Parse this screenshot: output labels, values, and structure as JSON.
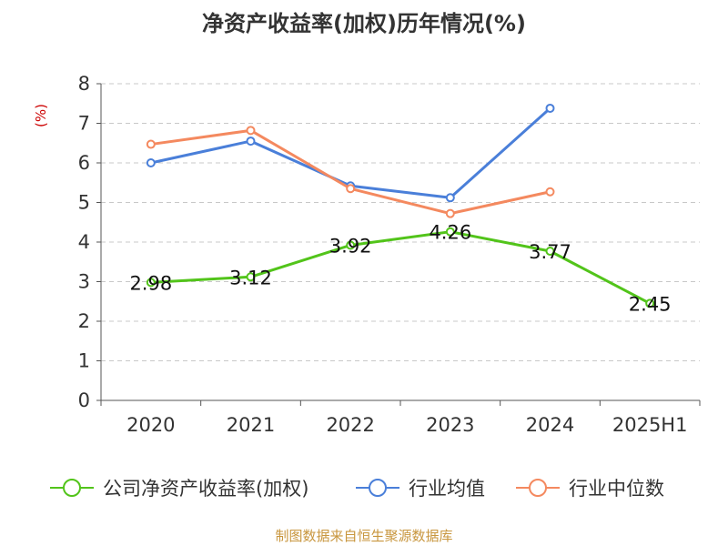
{
  "chart_data": {
    "type": "line",
    "title": "净资产收益率(加权)历年情况(%)",
    "ylabel": "(%)",
    "categories": [
      "2020",
      "2021",
      "2022",
      "2023",
      "2024",
      "2025H1"
    ],
    "ylim": [
      0,
      8
    ],
    "yticks": [
      0,
      1,
      2,
      3,
      4,
      5,
      6,
      7,
      8
    ],
    "grid": true,
    "legend_position": "bottom",
    "series": [
      {
        "name": "公司净资产收益率(加权)",
        "color": "#52c41a",
        "values": [
          2.98,
          3.12,
          3.92,
          4.26,
          3.77,
          2.45
        ],
        "labels": [
          "2.98",
          "3.12",
          "3.92",
          "4.26",
          "3.77",
          "2.45"
        ]
      },
      {
        "name": "行业均值",
        "color": "#4a7fd9",
        "values": [
          6.0,
          6.55,
          5.42,
          5.12,
          7.38,
          null
        ]
      },
      {
        "name": "行业中位数",
        "color": "#f4895f",
        "values": [
          6.47,
          6.82,
          5.35,
          4.72,
          5.27,
          null
        ]
      }
    ]
  },
  "source": {
    "text": "制图数据来自恒生聚源数据库",
    "color": "#c8963e"
  },
  "ylabel_color": "#cc0000"
}
